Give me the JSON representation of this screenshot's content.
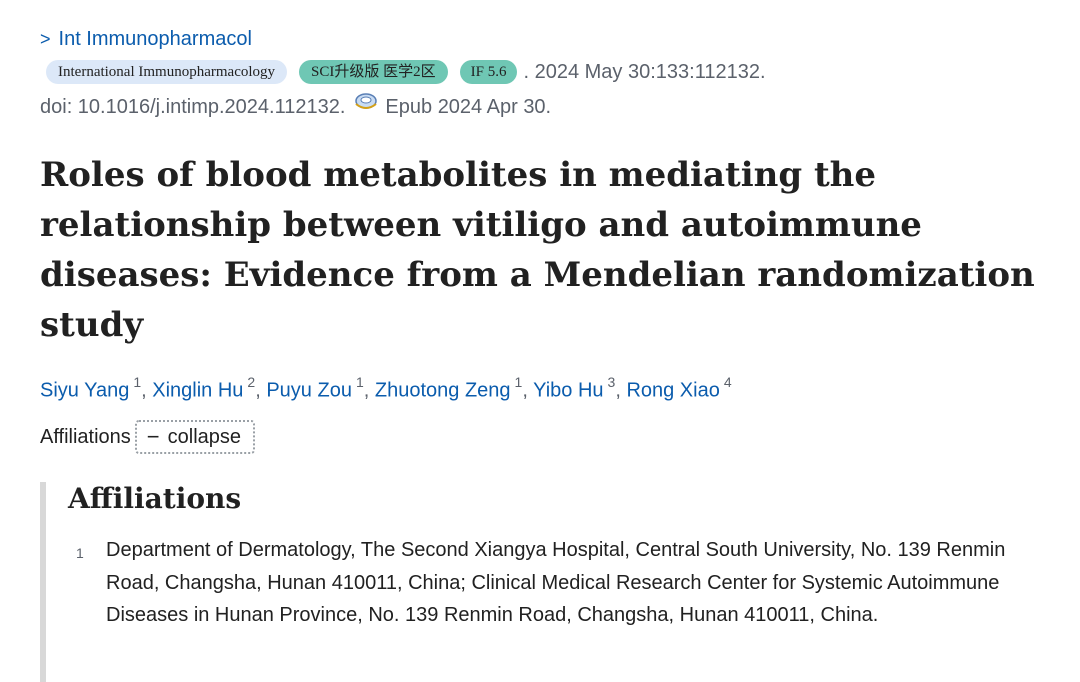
{
  "journal": {
    "chevron_icon": "chevron-right-icon",
    "short_name": "Int Immunopharmacol",
    "badges": {
      "journal_full": "International Immunopharmacology",
      "sci": "SCI升级版 医学2区",
      "impact_factor": "IF 5.6"
    },
    "citation": ". 2024 May 30:133:112132.",
    "doi": "doi: 10.1016/j.intimp.2024.112132.",
    "epub_icon": "epub-icon",
    "epub": "Epub 2024 Apr 30."
  },
  "article": {
    "title": "Roles of blood metabolites in mediating the relationship between vitiligo and autoimmune diseases: Evidence from a Mendelian randomization study"
  },
  "authors": [
    {
      "name": "Siyu Yang",
      "aff": "1"
    },
    {
      "name": "Xinglin Hu",
      "aff": "2"
    },
    {
      "name": "Puyu Zou",
      "aff": "1"
    },
    {
      "name": "Zhuotong Zeng",
      "aff": "1"
    },
    {
      "name": "Yibo Hu",
      "aff": "3"
    },
    {
      "name": "Rong Xiao",
      "aff": "4"
    }
  ],
  "separator": ", ",
  "affiliations": {
    "toggle_label": "Affiliations",
    "collapse_label": "collapse",
    "collapse_symbol": "−",
    "heading": "Affiliations",
    "items": [
      {
        "number": "1",
        "text": "Department of Dermatology, The Second Xiangya Hospital, Central South University, No. 139 Renmin Road, Changsha, Hunan 410011, China; Clinical Medical Research Center for Systemic Autoimmune Diseases in Hunan Province, No. 139 Renmin Road, Changsha, Hunan 410011, China."
      }
    ]
  },
  "colors": {
    "link": "#0b5cad",
    "meta_text": "#5b616b",
    "badge_journal_bg": "#dce8f8",
    "badge_teal_bg": "#6fc7b4"
  }
}
